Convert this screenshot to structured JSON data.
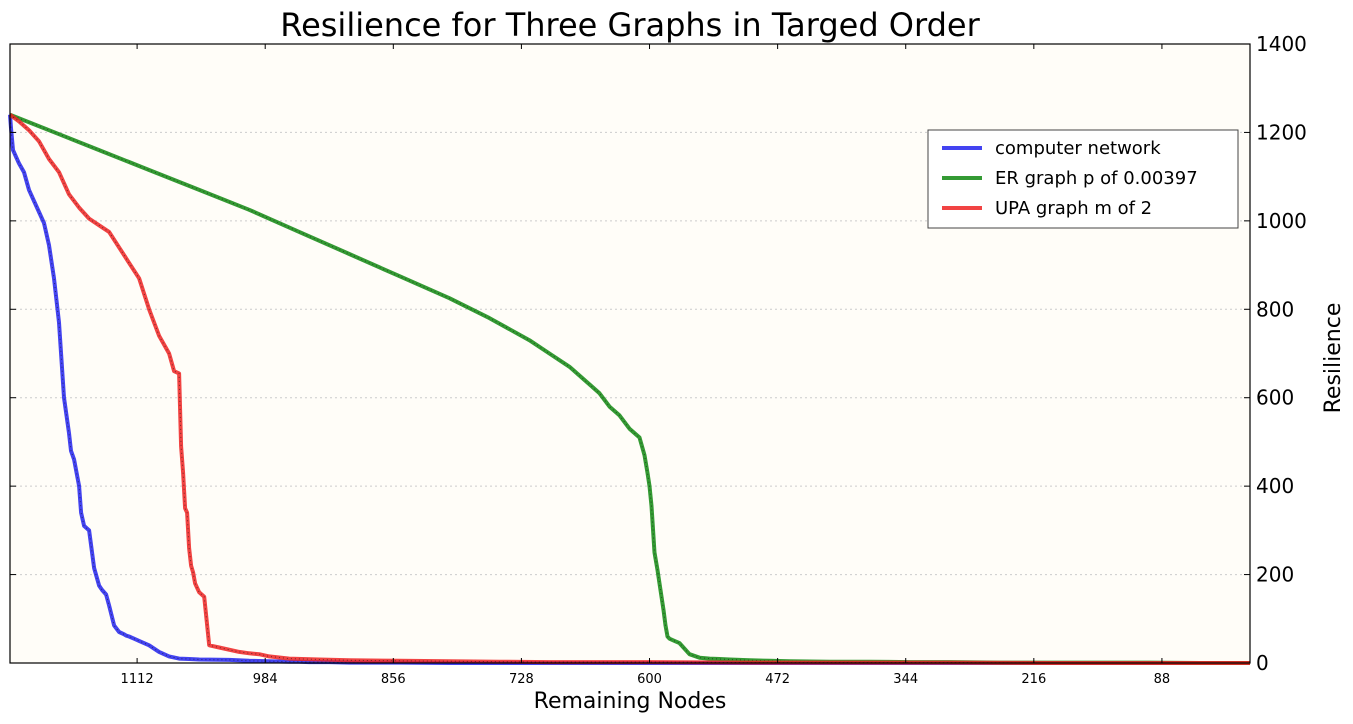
{
  "chart_data": {
    "type": "line",
    "title": "Resilience for Three Graphs in Targed Order",
    "xlabel": "Remaining Nodes",
    "ylabel": "Resilience",
    "xlim": [
      1239,
      0
    ],
    "ylim": [
      0,
      1400
    ],
    "x_ticks": [
      1112,
      984,
      856,
      728,
      600,
      472,
      344,
      216,
      88
    ],
    "y_ticks": [
      0,
      200,
      400,
      600,
      800,
      1000,
      1200,
      1400
    ],
    "grid": "horizontal dotted",
    "legend_position": "top-right",
    "background": "#fffdf8",
    "series": [
      {
        "name": "computer network",
        "color": "#2222ee",
        "x": [
          1239,
          1238,
          1236,
          1230,
          1225,
          1220,
          1215,
          1210,
          1205,
          1200,
          1195,
          1190,
          1185,
          1180,
          1178,
          1175,
          1170,
          1168,
          1165,
          1160,
          1155,
          1150,
          1147,
          1143,
          1140,
          1135,
          1130,
          1125,
          1123,
          1120,
          1115,
          1110,
          1100,
          1090,
          1080,
          1070,
          1060,
          1050,
          1020,
          1000,
          980,
          960,
          950,
          940,
          920,
          900,
          850,
          800,
          0
        ],
        "y": [
          1240,
          1210,
          1160,
          1130,
          1110,
          1070,
          1045,
          1020,
          995,
          945,
          870,
          770,
          600,
          520,
          480,
          460,
          400,
          340,
          310,
          300,
          215,
          175,
          165,
          155,
          130,
          85,
          70,
          65,
          62,
          60,
          55,
          50,
          40,
          25,
          15,
          10,
          9,
          8,
          7,
          5,
          4,
          3,
          3,
          2,
          2,
          1,
          1,
          0,
          0
        ]
      },
      {
        "name": "ER graph p of 0.00397",
        "color": "#118811",
        "x": [
          1239,
          1200,
          1150,
          1100,
          1050,
          1000,
          950,
          900,
          850,
          800,
          760,
          720,
          700,
          680,
          660,
          650,
          640,
          630,
          620,
          610,
          605,
          602,
          600,
          598,
          595,
          592,
          590,
          588,
          586,
          584,
          582,
          580,
          575,
          570,
          560,
          550,
          540,
          530,
          520,
          510,
          500,
          480,
          460,
          420,
          380,
          340,
          300,
          250,
          200,
          150,
          100,
          50,
          0
        ],
        "y": [
          1240,
          1205,
          1160,
          1115,
          1070,
          1025,
          975,
          925,
          875,
          825,
          780,
          730,
          700,
          670,
          630,
          610,
          580,
          560,
          530,
          510,
          470,
          430,
          400,
          355,
          250,
          210,
          180,
          150,
          120,
          85,
          60,
          55,
          50,
          45,
          20,
          12,
          10,
          9,
          8,
          7,
          6,
          5,
          4,
          3,
          3,
          2,
          2,
          1,
          1,
          1,
          1,
          0,
          0
        ]
      },
      {
        "name": "UPA graph m of 2",
        "color": "#ee2222",
        "x": [
          1239,
          1230,
          1220,
          1210,
          1200,
          1190,
          1180,
          1170,
          1160,
          1150,
          1140,
          1130,
          1120,
          1110,
          1100,
          1090,
          1080,
          1075,
          1070,
          1068,
          1066,
          1064,
          1062,
          1060,
          1058,
          1056,
          1054,
          1050,
          1045,
          1040,
          1030,
          1010,
          1000,
          990,
          980,
          960,
          930,
          900,
          850,
          800,
          750,
          700,
          600,
          500,
          400,
          300,
          200,
          100,
          0
        ],
        "y": [
          1240,
          1225,
          1205,
          1180,
          1140,
          1110,
          1060,
          1030,
          1005,
          990,
          975,
          940,
          905,
          870,
          800,
          740,
          700,
          660,
          655,
          490,
          430,
          350,
          340,
          260,
          220,
          205,
          180,
          160,
          150,
          40,
          35,
          25,
          22,
          20,
          15,
          10,
          8,
          6,
          5,
          4,
          3,
          2,
          2,
          1,
          1,
          1,
          0,
          0,
          0
        ]
      }
    ]
  }
}
